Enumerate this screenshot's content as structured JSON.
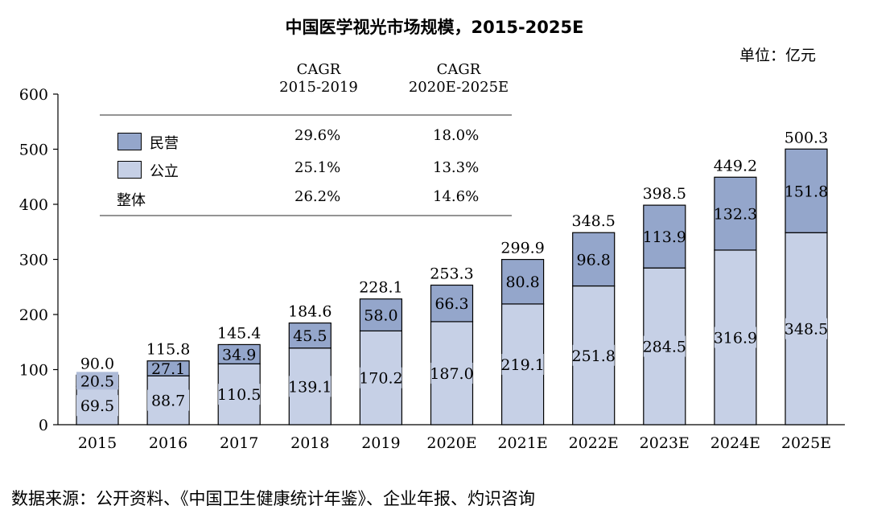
{
  "title": "中国医学视光市场规模，2015-2025E",
  "unit": "单位：亿元",
  "source": "数据来源：公开资料、《中国卫生健康统计年鉴》、企业年报、灼识咨询",
  "colors": {
    "private": "#94a6cb",
    "public": "#c6d0e6",
    "text": "#000000"
  },
  "cagr_table": {
    "col1_header": [
      "CAGR",
      "2015-2019"
    ],
    "col2_header": [
      "CAGR",
      "2020E-2025E"
    ],
    "rows": [
      {
        "label": "民营",
        "v1": "29.6%",
        "v2": "18.0%"
      },
      {
        "label": "公立",
        "v1": "25.1%",
        "v2": "13.3%"
      },
      {
        "label": "整体",
        "v1": "26.2%",
        "v2": "14.6%"
      }
    ]
  },
  "chart_data": {
    "type": "bar",
    "stacked": true,
    "categories": [
      "2015",
      "2016",
      "2017",
      "2018",
      "2019",
      "2020E",
      "2021E",
      "2022E",
      "2023E",
      "2024E",
      "2025E"
    ],
    "series": [
      {
        "name": "公立",
        "values": [
          69.5,
          88.7,
          110.5,
          139.1,
          170.2,
          187.0,
          219.1,
          251.8,
          284.5,
          316.9,
          348.5
        ]
      },
      {
        "name": "民营",
        "values": [
          20.5,
          27.1,
          34.9,
          45.5,
          58.0,
          66.3,
          80.8,
          96.8,
          113.9,
          132.3,
          151.8
        ]
      }
    ],
    "totals": [
      90.0,
      115.8,
      145.4,
      184.6,
      228.1,
      253.3,
      299.9,
      348.5,
      398.5,
      449.2,
      500.3
    ],
    "yticks": [
      0,
      100,
      200,
      300,
      400,
      500,
      600
    ],
    "ylim": [
      0,
      600
    ],
    "xlabel": "",
    "ylabel": "",
    "grid": false,
    "legend": "top-left"
  }
}
